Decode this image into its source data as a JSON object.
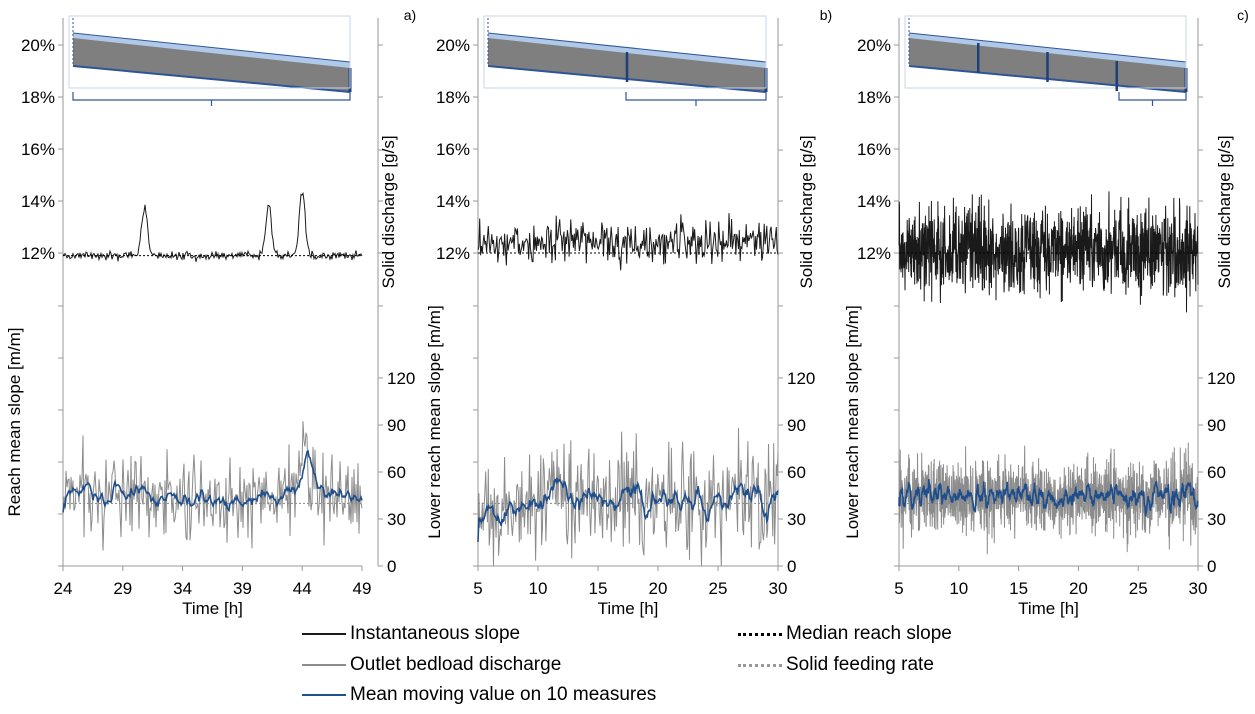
{
  "chart_data": [
    {
      "type": "line",
      "panel_label": "a)",
      "xlabel": "Time [h]",
      "ylabel_left": "Reach mean slope [m/m]",
      "ylabel_right": "Solid discharge [g/s]",
      "x_ticks": [
        "24",
        "29",
        "34",
        "39",
        "44",
        "49"
      ],
      "xlim": [
        24,
        49
      ],
      "slope_ticks": [
        "20%",
        "18%",
        "16%",
        "14%",
        "12%"
      ],
      "slope_ylim": [
        0.12,
        0.2
      ],
      "discharge_ticks": [
        "120",
        "90",
        "60",
        "30",
        "0"
      ],
      "discharge_ylim": [
        0,
        120
      ],
      "median_reach_slope": 0.119,
      "solid_feeding_rate": 40,
      "slope_spikes": [
        [
          30.8,
          0.137
        ],
        [
          41.2,
          0.138
        ],
        [
          44.0,
          0.144
        ]
      ],
      "discharge_spikes": [
        [
          44.2,
          83
        ]
      ],
      "slope_base": 0.119,
      "discharge_mean": 46
    },
    {
      "type": "line",
      "panel_label": "b)",
      "xlabel": "Time [h]",
      "ylabel_left": "Lower reach mean slope [m/m]",
      "ylabel_right": "Solid discharge [g/s]",
      "x_ticks": [
        "5",
        "10",
        "15",
        "20",
        "25",
        "30"
      ],
      "xlim": [
        5,
        30
      ],
      "slope_ticks": [
        "20%",
        "18%",
        "16%",
        "14%",
        "12%"
      ],
      "slope_ylim": [
        0.12,
        0.2
      ],
      "discharge_ticks": [
        "120",
        "90",
        "60",
        "30",
        "0"
      ],
      "discharge_ylim": [
        0,
        120
      ],
      "median_reach_slope": 0.12,
      "solid_feeding_rate": 40,
      "slope_base": 0.124,
      "discharge_mean": 44
    },
    {
      "type": "line",
      "panel_label": "c)",
      "xlabel": "Time [h]",
      "ylabel_left": "Lower reach mean slope [m/m]",
      "ylabel_right": "Solid discharge [g/s]",
      "x_ticks": [
        "5",
        "10",
        "15",
        "20",
        "25",
        "30"
      ],
      "xlim": [
        5,
        30
      ],
      "slope_ticks": [
        "20%",
        "18%",
        "16%",
        "14%",
        "12%"
      ],
      "slope_ylim": [
        0.12,
        0.2
      ],
      "discharge_ticks": [
        "120",
        "90",
        "60",
        "30",
        "0"
      ],
      "discharge_ylim": [
        0,
        120
      ],
      "median_reach_slope": 0.12,
      "solid_feeding_rate": 40,
      "slope_base": 0.121,
      "discharge_mean": 45
    }
  ],
  "legend": {
    "instantaneous_slope": "Instantaneous slope",
    "outlet_bedload": "Outlet bedload discharge",
    "moving_mean": "Mean moving value on 10 measures",
    "median_slope": "Median reach slope",
    "feeding_rate": "Solid feeding rate"
  },
  "colors": {
    "slope": "#1a1a1a",
    "bedload": "#8c8c8c",
    "moving_mean": "#1f4e8c",
    "flume_fill": "#7f7f7f",
    "water": "#a9c3e6",
    "flume_border": "#2e5597"
  }
}
